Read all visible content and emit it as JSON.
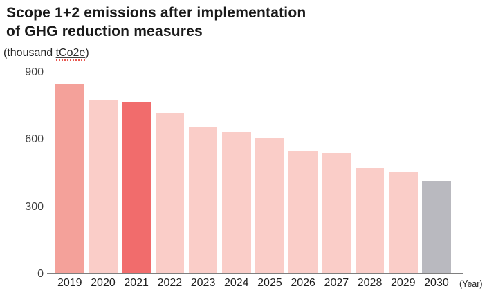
{
  "header": {
    "title": "Scope 1+2 emissions after implementation\nof GHG reduction measures",
    "units_prefix": "(thousand ",
    "units_term": "tCo2e",
    "units_suffix": ")"
  },
  "chart_data": {
    "type": "bar",
    "title": "Scope 1+2 emissions after implementation of GHG reduction measures",
    "unit_label": "(thousand tCo2e)",
    "x_axis_suffix_label": "(Year)",
    "categories": [
      "2019",
      "2020",
      "2021",
      "2022",
      "2023",
      "2024",
      "2025",
      "2026",
      "2027",
      "2028",
      "2029",
      "2030"
    ],
    "values": [
      845,
      770,
      760,
      715,
      650,
      630,
      600,
      545,
      535,
      470,
      450,
      410
    ],
    "bar_colors": [
      "#F4A19A",
      "#FACDC8",
      "#F16C6C",
      "#FACDC8",
      "#FACDC8",
      "#FACDC8",
      "#FACDC8",
      "#FACDC8",
      "#FACDC8",
      "#FACDC8",
      "#FACDC8",
      "#B9B9BF"
    ],
    "color_legend": {
      "base_year": "#F4A19A",
      "highlight_2021": "#F16C6C",
      "projection": "#FACDC8",
      "target_2030": "#B9B9BF"
    },
    "xlabel": "(Year)",
    "ylabel": "(thousand tCo2e)",
    "ylim": [
      0,
      900
    ],
    "yticks": [
      900,
      600,
      300,
      0
    ],
    "grid": false,
    "legend_position": "none",
    "axis_color": "#7F7F7F"
  }
}
